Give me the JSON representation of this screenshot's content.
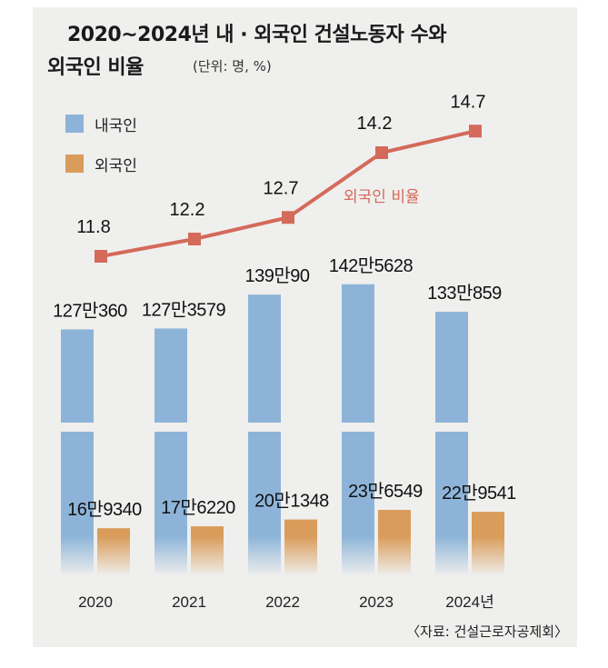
{
  "title": {
    "line1": "2020~2024년 내 · 외국인 건설노동자 수와",
    "line2": "외국인 비율",
    "unit": "(단위: 명, %)"
  },
  "legend": [
    {
      "label": "내국인",
      "color": "#8db4d8"
    },
    {
      "label": "외국인",
      "color": "#d99c5a"
    }
  ],
  "source": "〈자료: 건설근로자공제회〉",
  "chart_data": {
    "type": "bar",
    "title": "2020~2024년 내 · 외국인 건설노동자 수와 외국인 비율",
    "categories": [
      "2020",
      "2021",
      "2022",
      "2023",
      "2024년"
    ],
    "series": [
      {
        "name": "내국인",
        "type": "bar",
        "color": "#8db4d8",
        "values": [
          1270360,
          1273579,
          1390090,
          1425628,
          1330859
        ],
        "labels": [
          "127만360",
          "127만3579",
          "139만90",
          "142만5628",
          "133만859"
        ]
      },
      {
        "name": "외국인",
        "type": "bar",
        "color": "#d99c5a",
        "values": [
          169340,
          176220,
          201348,
          236549,
          229541
        ],
        "labels": [
          "16만9340",
          "17만6220",
          "20만1348",
          "23만6549",
          "22만9541"
        ]
      },
      {
        "name": "외국인 비율",
        "type": "line",
        "color": "#d46a5a",
        "values": [
          11.8,
          12.2,
          12.7,
          14.2,
          14.7
        ],
        "labels": [
          "11.8",
          "12.2",
          "12.7",
          "14.2",
          "14.7"
        ]
      }
    ],
    "line_label": "외국인 비율",
    "axis_break": true,
    "grid": false
  }
}
